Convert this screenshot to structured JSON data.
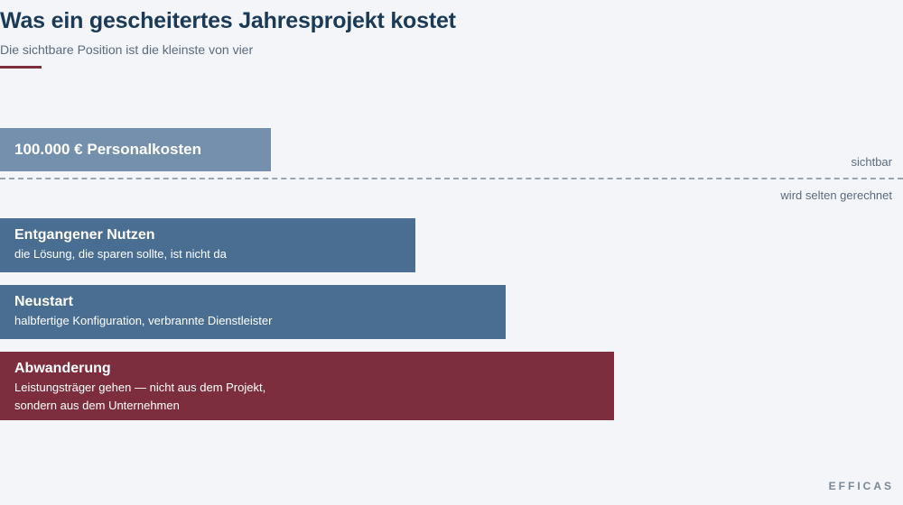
{
  "header": {
    "title": "Was ein gescheitertes Jahresprojekt kostet",
    "subtitle": "Die sichtbare Position ist die kleinste von vier"
  },
  "divider": {
    "label_above": "sichtbar",
    "label_below": "wird selten gerechnet"
  },
  "positions": [
    {
      "title": "100.000 € Personalkosten",
      "description": "",
      "color": "#7490ac",
      "visible": true
    },
    {
      "title": "Entgangener Nutzen",
      "description": "die Lösung, die sparen sollte, ist nicht da",
      "color": "#4a6e92",
      "visible": false
    },
    {
      "title": "Neustart",
      "description": "halbfertige Konfiguration, verbrannte Dienstleister",
      "color": "#4a6e92",
      "visible": false
    },
    {
      "title": "Abwanderung",
      "description": "Leistungsträger gehen — nicht aus dem Projekt,\nsondern aus dem Unternehmen",
      "color": "#7d2e3e",
      "visible": false
    }
  ],
  "colors": {
    "background": "#f3f5f8",
    "title": "#1b3a57",
    "accent": "#7d2e3e"
  },
  "brand": "EFFICAS"
}
